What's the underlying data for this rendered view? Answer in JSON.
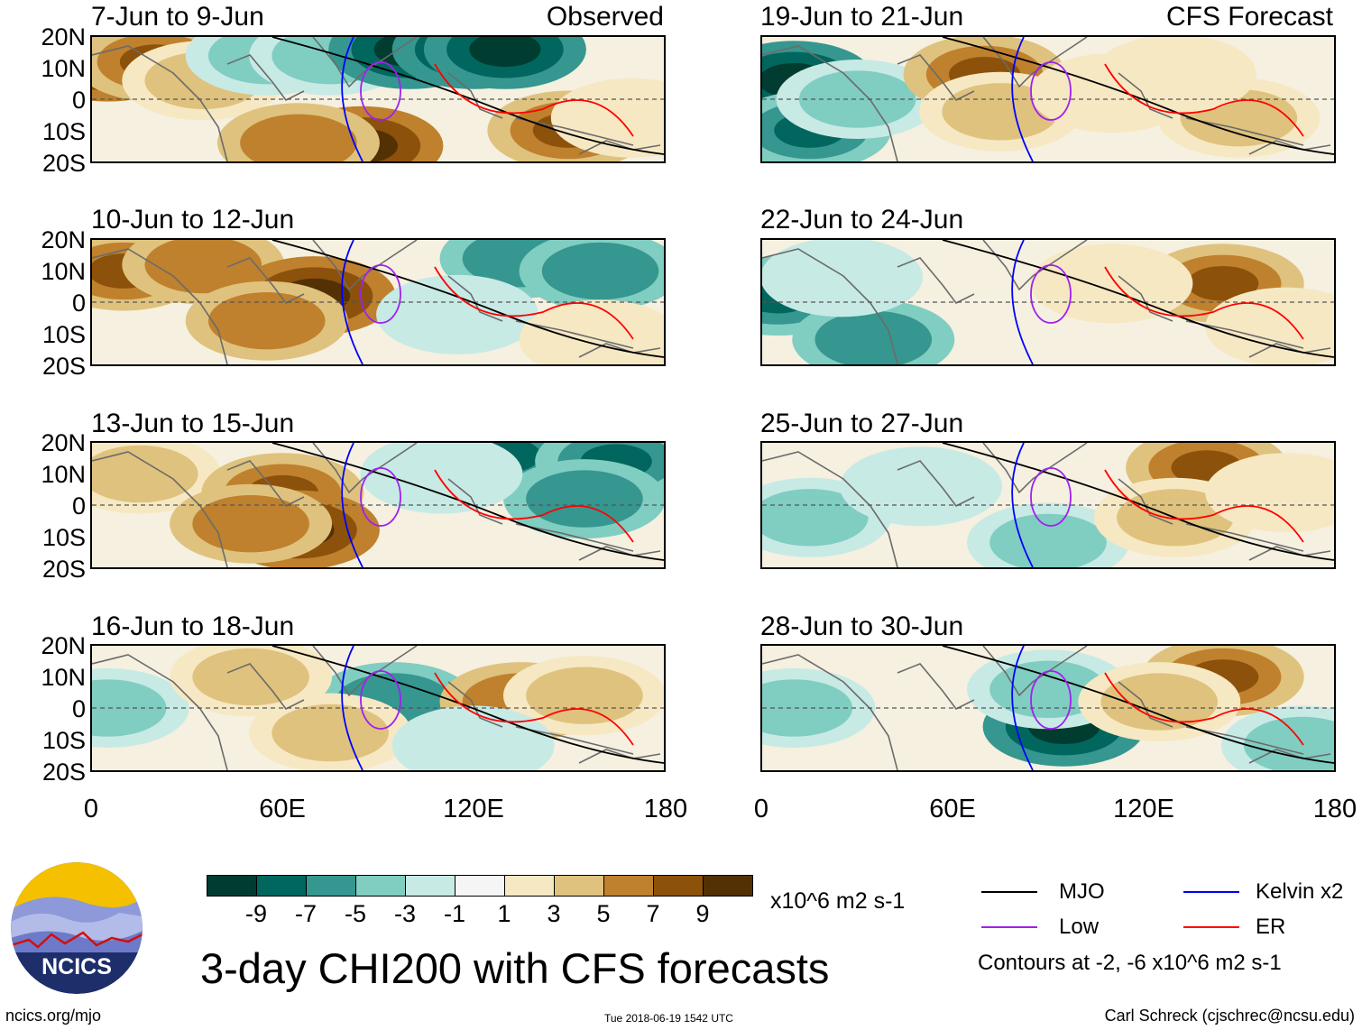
{
  "header": {
    "observed_label": "Observed",
    "forecast_label": "CFS Forecast"
  },
  "panels": [
    {
      "title": "7-Jun to 9-Jun",
      "kind": "observed",
      "shading": [
        {
          "x": 5,
          "y": 12,
          "v": 9
        },
        {
          "x": 20,
          "y": 12,
          "v": 7
        },
        {
          "x": 35,
          "y": 6,
          "v": 3
        },
        {
          "x": 55,
          "y": 14,
          "v": -3
        },
        {
          "x": 75,
          "y": 14,
          "v": -3
        },
        {
          "x": 100,
          "y": 16,
          "v": -9
        },
        {
          "x": 120,
          "y": 16,
          "v": -9
        },
        {
          "x": 130,
          "y": 16,
          "v": -9
        },
        {
          "x": 85,
          "y": -15,
          "v": 9
        },
        {
          "x": 65,
          "y": -14,
          "v": 5
        },
        {
          "x": 150,
          "y": -10,
          "v": 7
        },
        {
          "x": 170,
          "y": -6,
          "v": 1
        }
      ]
    },
    {
      "title": "10-Jun to 12-Jun",
      "kind": "observed",
      "shading": [
        {
          "x": 10,
          "y": 10,
          "v": 7
        },
        {
          "x": 35,
          "y": 12,
          "v": 5
        },
        {
          "x": 70,
          "y": 2,
          "v": 9
        },
        {
          "x": 55,
          "y": -6,
          "v": 5
        },
        {
          "x": 135,
          "y": 14,
          "v": -5
        },
        {
          "x": 160,
          "y": 10,
          "v": -5
        },
        {
          "x": 115,
          "y": -4,
          "v": -1
        },
        {
          "x": 160,
          "y": -12,
          "v": 1
        }
      ]
    },
    {
      "title": "13-Jun to 15-Jun",
      "kind": "observed",
      "shading": [
        {
          "x": 15,
          "y": 10,
          "v": 3
        },
        {
          "x": 60,
          "y": 4,
          "v": 7
        },
        {
          "x": 65,
          "y": -8,
          "v": 9
        },
        {
          "x": 50,
          "y": -6,
          "v": 5
        },
        {
          "x": 130,
          "y": 16,
          "v": -7
        },
        {
          "x": 165,
          "y": 14,
          "v": -7
        },
        {
          "x": 155,
          "y": 2,
          "v": -5
        },
        {
          "x": 110,
          "y": 10,
          "v": -1
        }
      ]
    },
    {
      "title": "16-Jun to 18-Jun",
      "kind": "observed",
      "shading": [
        {
          "x": 5,
          "y": 0,
          "v": -3
        },
        {
          "x": 95,
          "y": 2,
          "v": -5
        },
        {
          "x": 50,
          "y": 10,
          "v": 3
        },
        {
          "x": 75,
          "y": -8,
          "v": 3
        },
        {
          "x": 135,
          "y": 2,
          "v": 5
        },
        {
          "x": 155,
          "y": 4,
          "v": 3
        },
        {
          "x": 120,
          "y": -12,
          "v": -1
        }
      ]
    },
    {
      "title": "19-Jun to 21-Jun",
      "kind": "forecast",
      "shading": [
        {
          "x": 10,
          "y": 6,
          "v": -9
        },
        {
          "x": 15,
          "y": -10,
          "v": -7
        },
        {
          "x": 30,
          "y": 0,
          "v": -3
        },
        {
          "x": 70,
          "y": 8,
          "v": 7
        },
        {
          "x": 75,
          "y": -4,
          "v": 3
        },
        {
          "x": 110,
          "y": 2,
          "v": 1
        },
        {
          "x": 150,
          "y": -6,
          "v": 3
        },
        {
          "x": 130,
          "y": 8,
          "v": 1
        }
      ]
    },
    {
      "title": "22-Jun to 24-Jun",
      "kind": "forecast",
      "shading": [
        {
          "x": 5,
          "y": 2,
          "v": -7
        },
        {
          "x": 35,
          "y": -12,
          "v": -5
        },
        {
          "x": 25,
          "y": 8,
          "v": -1
        },
        {
          "x": 145,
          "y": 6,
          "v": 7
        },
        {
          "x": 110,
          "y": 6,
          "v": 1
        },
        {
          "x": 165,
          "y": -8,
          "v": 1
        }
      ]
    },
    {
      "title": "25-Jun to 27-Jun",
      "kind": "forecast",
      "shading": [
        {
          "x": 15,
          "y": -4,
          "v": -3
        },
        {
          "x": 50,
          "y": 6,
          "v": -1
        },
        {
          "x": 90,
          "y": -12,
          "v": -3
        },
        {
          "x": 140,
          "y": 12,
          "v": 7
        },
        {
          "x": 130,
          "y": -4,
          "v": 3
        },
        {
          "x": 165,
          "y": 4,
          "v": 1
        }
      ]
    },
    {
      "title": "28-Jun to 30-Jun",
      "kind": "forecast",
      "shading": [
        {
          "x": 10,
          "y": 0,
          "v": -3
        },
        {
          "x": 95,
          "y": -6,
          "v": -9
        },
        {
          "x": 90,
          "y": 6,
          "v": -3
        },
        {
          "x": 145,
          "y": 10,
          "v": 7
        },
        {
          "x": 125,
          "y": 2,
          "v": 3
        },
        {
          "x": 170,
          "y": -12,
          "v": -3
        }
      ]
    }
  ],
  "axes": {
    "lat_labels": [
      "20N",
      "10N",
      "0",
      "10S",
      "20S"
    ],
    "lon_labels": [
      "0",
      "60E",
      "120E",
      "180"
    ]
  },
  "colorbar": {
    "colors": [
      "#003c30",
      "#01665e",
      "#35978f",
      "#80cdc1",
      "#c7eae5",
      "#f5f5f5",
      "#f6e8c3",
      "#dfc27d",
      "#bf812d",
      "#8c510a",
      "#543005"
    ],
    "labels": [
      "-9",
      "-7",
      "-5",
      "-3",
      "-1",
      "1",
      "3",
      "5",
      "7",
      "9"
    ],
    "units": "x10^6 m2 s-1"
  },
  "title": "3-day CHI200 with CFS forecasts",
  "legend": {
    "items": [
      {
        "label": "MJO",
        "color": "#000000"
      },
      {
        "label": "Kelvin x2",
        "color": "#0000ff"
      },
      {
        "label": "Low",
        "color": "#a020f0"
      },
      {
        "label": "ER",
        "color": "#ff0000"
      }
    ],
    "note": "Contours at -2, -6 x10^6 m2 s-1"
  },
  "footer": {
    "site": "ncics.org/mjo",
    "timestamp": "Tue 2018-06-19 1542 UTC",
    "author": "Carl Schreck (cjschrec@ncsu.edu)"
  },
  "logo": {
    "text": "NCICS",
    "ring_color": "#1e2e6b",
    "sun_color": "#f5c000"
  }
}
